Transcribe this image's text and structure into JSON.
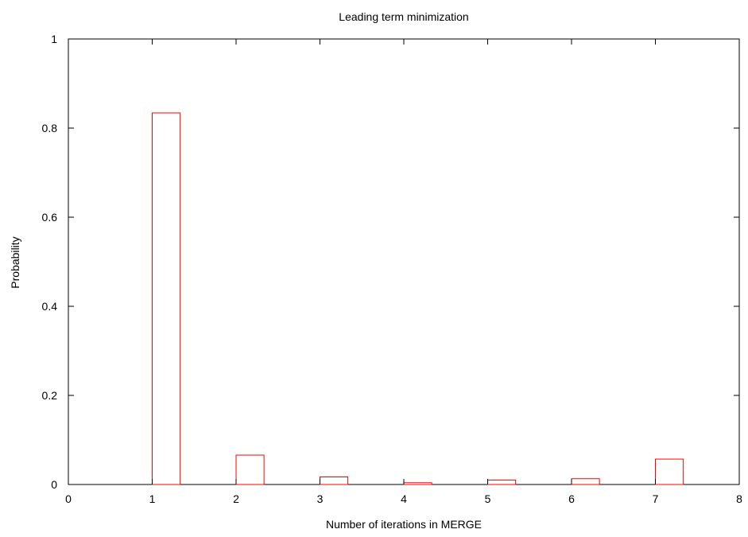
{
  "chart_data": {
    "type": "bar",
    "title": "Leading term minimization",
    "xlabel": "Number of iterations in MERGE",
    "ylabel": "Probability",
    "xlim": [
      0,
      8
    ],
    "ylim": [
      0,
      1
    ],
    "x_ticks": [
      "0",
      "1",
      "2",
      "3",
      "4",
      "5",
      "6",
      "7",
      "8"
    ],
    "y_ticks": [
      "0",
      "0.2",
      "0.4",
      "0.6",
      "0.8",
      "1"
    ],
    "grid": false,
    "legend": "none",
    "bar_color": "#ff0000",
    "bars": [
      {
        "x": 1,
        "value": 0.834
      },
      {
        "x": 2,
        "value": 0.066
      },
      {
        "x": 3,
        "value": 0.017
      },
      {
        "x": 4,
        "value": 0.004
      },
      {
        "x": 5,
        "value": 0.01
      },
      {
        "x": 6,
        "value": 0.013
      },
      {
        "x": 7,
        "value": 0.057
      }
    ]
  }
}
